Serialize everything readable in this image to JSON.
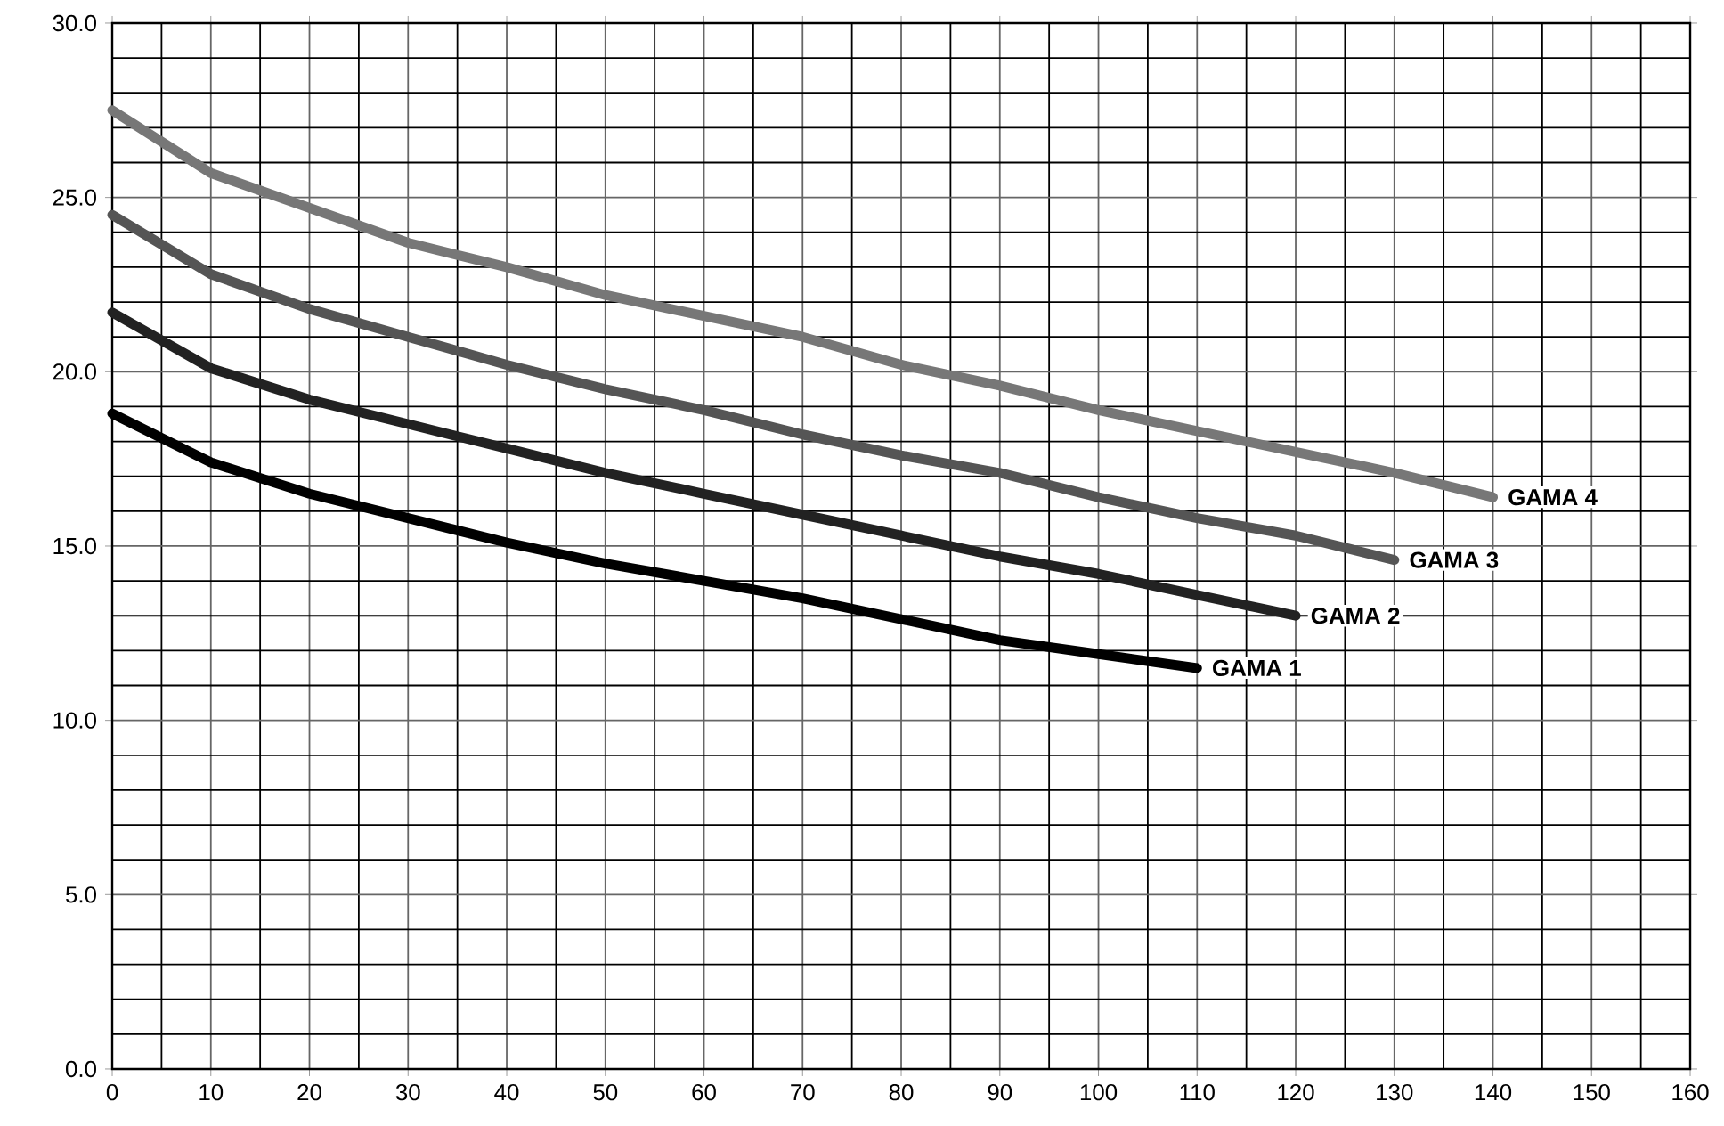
{
  "chart_data": {
    "type": "line",
    "x": [
      0,
      10,
      20,
      30,
      40,
      50,
      60,
      70,
      80,
      90,
      100,
      110,
      120,
      130,
      140
    ],
    "series": [
      {
        "name": "GAMA 1",
        "color": "#000000",
        "values": [
          18.8,
          17.4,
          16.5,
          15.8,
          15.1,
          14.5,
          14.0,
          13.5,
          12.9,
          12.3,
          11.9,
          11.5,
          null,
          null,
          null
        ]
      },
      {
        "name": "GAMA 2",
        "color": "#222222",
        "values": [
          21.7,
          20.1,
          19.2,
          18.5,
          17.8,
          17.1,
          16.5,
          15.9,
          15.3,
          14.7,
          14.2,
          13.6,
          13.0,
          null,
          null
        ]
      },
      {
        "name": "GAMA 3",
        "color": "#555555",
        "values": [
          24.5,
          22.8,
          21.8,
          21.0,
          20.2,
          19.5,
          18.9,
          18.2,
          17.6,
          17.1,
          16.4,
          15.8,
          15.3,
          14.6,
          null
        ]
      },
      {
        "name": "GAMA 4",
        "color": "#777777",
        "values": [
          27.5,
          25.7,
          24.7,
          23.7,
          23.0,
          22.2,
          21.6,
          21.0,
          20.2,
          19.6,
          18.9,
          18.3,
          17.7,
          17.1,
          16.4
        ]
      }
    ],
    "xlim": [
      0,
      160
    ],
    "xticks": [
      0,
      10,
      20,
      30,
      40,
      50,
      60,
      70,
      80,
      90,
      100,
      110,
      120,
      130,
      140,
      150,
      160
    ],
    "ylim": [
      0,
      30
    ],
    "yticks": [
      {
        "value": 0,
        "label": "0.0"
      },
      {
        "value": 5,
        "label": "5.0"
      },
      {
        "value": 10,
        "label": "10.0"
      },
      {
        "value": 15,
        "label": "15.0"
      },
      {
        "value": 20,
        "label": "20.0"
      },
      {
        "value": 25,
        "label": "25.0"
      },
      {
        "value": 30,
        "label": "30.0"
      }
    ],
    "grid": true,
    "legend": false,
    "marker": "none",
    "line_style": "solid"
  }
}
